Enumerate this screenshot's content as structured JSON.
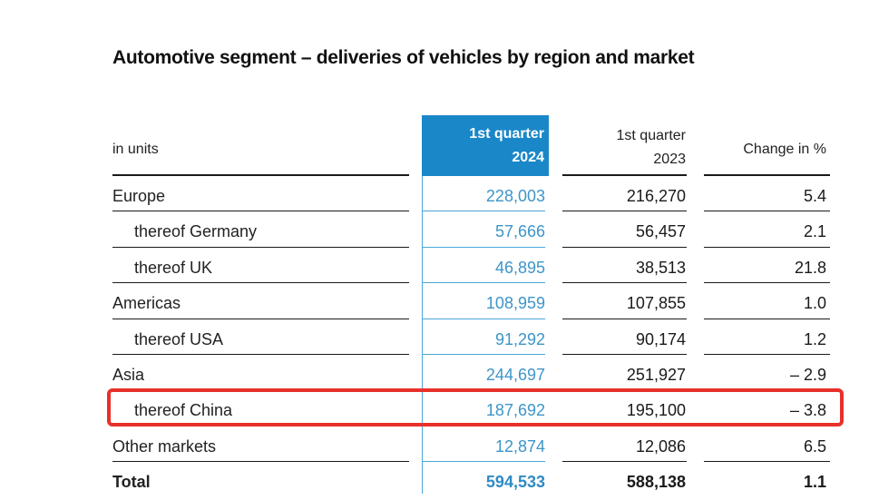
{
  "title": "Automotive segment – deliveries of vehicles by region and market",
  "table": {
    "headers": {
      "label": "in units",
      "q2024": [
        "1st quarter",
        "2024"
      ],
      "q2023": [
        "1st quarter",
        "2023"
      ],
      "change": "Change in %"
    },
    "rows": [
      {
        "label": "Europe",
        "indent": false,
        "q2024": "228,003",
        "q2023": "216,270",
        "change": "5.4"
      },
      {
        "label": "thereof Germany",
        "indent": true,
        "q2024": "57,666",
        "q2023": "56,457",
        "change": "2.1"
      },
      {
        "label": "thereof UK",
        "indent": true,
        "q2024": "46,895",
        "q2023": "38,513",
        "change": "21.8"
      },
      {
        "label": "Americas",
        "indent": false,
        "q2024": "108,959",
        "q2023": "107,855",
        "change": "1.0"
      },
      {
        "label": "thereof USA",
        "indent": true,
        "q2024": "91,292",
        "q2023": "90,174",
        "change": "1.2"
      },
      {
        "label": "Asia",
        "indent": false,
        "q2024": "244,697",
        "q2023": "251,927",
        "change": "– 2.9"
      },
      {
        "label": "thereof China",
        "indent": true,
        "q2024": "187,692",
        "q2023": "195,100",
        "change": "– 3.8",
        "highlighted": true
      },
      {
        "label": "Other markets",
        "indent": false,
        "q2024": "12,874",
        "q2023": "12,086",
        "change": "6.5"
      },
      {
        "label": "Total",
        "indent": false,
        "q2024": "594,533",
        "q2023": "588,138",
        "change": "1.1",
        "bold": true
      }
    ]
  },
  "colors": {
    "highlight_column": "#1a87c9",
    "highlight_values": "#3d95c9",
    "annotation_box": "#e8302a"
  }
}
